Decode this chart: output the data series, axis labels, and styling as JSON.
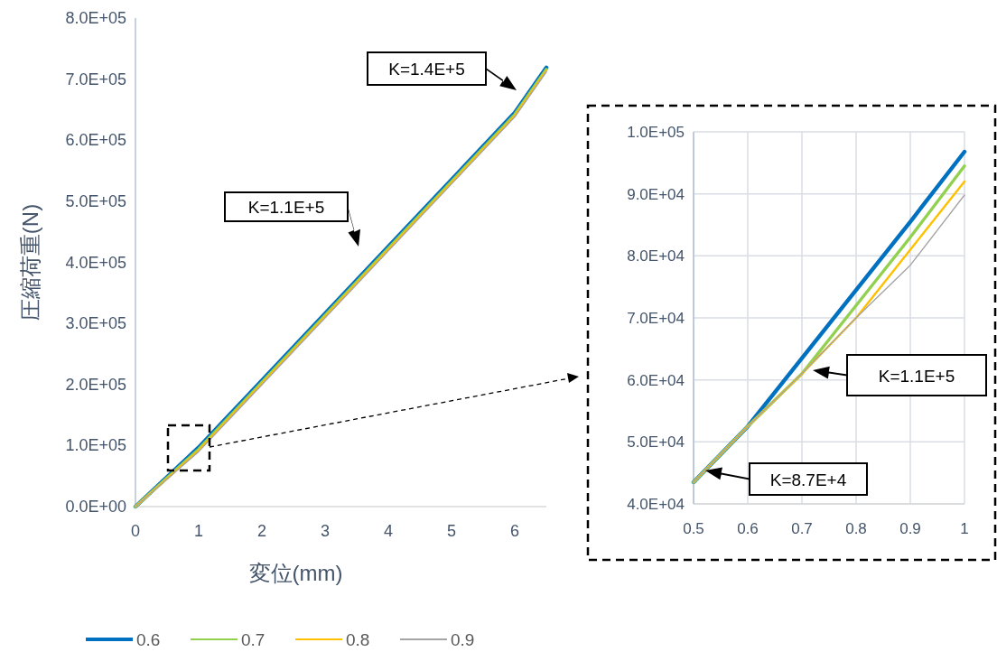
{
  "chart_data": [
    {
      "type": "line",
      "xlabel": "変位(mm)",
      "ylabel": "圧縮荷重(N)",
      "x": [
        0,
        1,
        6,
        6.5
      ],
      "xlim": [
        0,
        6.5
      ],
      "xticks": [
        0,
        1,
        2,
        3,
        4,
        5,
        6
      ],
      "ylim": [
        0,
        800000
      ],
      "yticks": [
        {
          "value": 0,
          "label": "0.0E+00"
        },
        {
          "value": 100000,
          "label": "1.0E+05"
        },
        {
          "value": 200000,
          "label": "2.0E+05"
        },
        {
          "value": 300000,
          "label": "3.0E+05"
        },
        {
          "value": 400000,
          "label": "4.0E+05"
        },
        {
          "value": 500000,
          "label": "5.0E+05"
        },
        {
          "value": 600000,
          "label": "6.0E+05"
        },
        {
          "value": 700000,
          "label": "7.0E+05"
        },
        {
          "value": 800000,
          "label": "8.0E+05"
        }
      ],
      "series": [
        {
          "name": "0.6",
          "color": "#0070c0",
          "values": [
            0,
            97000,
            645000,
            719000
          ]
        },
        {
          "name": "0.7",
          "color": "#92d050",
          "values": [
            0,
            94000,
            642000,
            716000
          ]
        },
        {
          "name": "0.8",
          "color": "#ffc000",
          "values": [
            0,
            92000,
            640000,
            714000
          ]
        },
        {
          "name": "0.9",
          "color": "#a5a5a5",
          "values": [
            0,
            90000,
            638000,
            712000
          ]
        }
      ],
      "annotations": [
        "K=1.4E+5",
        "K=1.1E+5"
      ],
      "legend": "bottom"
    },
    {
      "type": "line",
      "x": [
        0.5,
        0.6,
        0.7,
        0.8,
        0.9,
        1
      ],
      "xlim": [
        0.5,
        1
      ],
      "xticks": [
        0.5,
        0.6,
        0.7,
        0.8,
        0.9,
        1
      ],
      "ylim": [
        40000,
        100000
      ],
      "yticks": [
        {
          "value": 40000,
          "label": "4.0E+04"
        },
        {
          "value": 50000,
          "label": "5.0E+04"
        },
        {
          "value": 60000,
          "label": "6.0E+04"
        },
        {
          "value": 70000,
          "label": "7.0E+04"
        },
        {
          "value": 80000,
          "label": "8.0E+04"
        },
        {
          "value": 90000,
          "label": "9.0E+04"
        },
        {
          "value": 100000,
          "label": "1.0E+05"
        }
      ],
      "series": [
        {
          "color": "#0070c0",
          "values": [
            43500,
            52500,
            63500,
            74500,
            85500,
            96800
          ]
        },
        {
          "color": "#92d050",
          "values": [
            43500,
            52500,
            61000,
            72000,
            83000,
            94500
          ]
        },
        {
          "color": "#ffc000",
          "values": [
            43500,
            52500,
            61000,
            70000,
            81000,
            92000
          ]
        },
        {
          "color": "#a5a5a5",
          "values": [
            43500,
            52500,
            61000,
            70000,
            78500,
            89800
          ]
        }
      ],
      "annotations": [
        "K=1.1E+5",
        "K=8.7E+4"
      ],
      "grid": true
    }
  ]
}
